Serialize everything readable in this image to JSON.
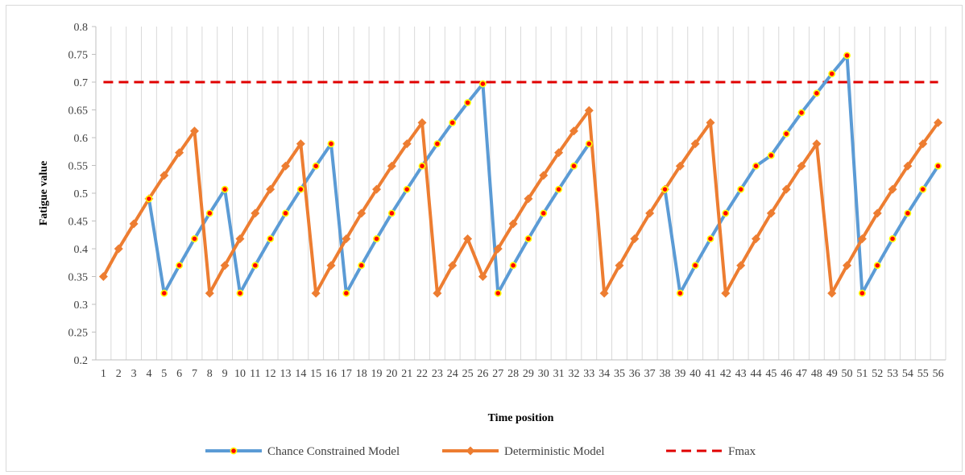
{
  "chart_data": {
    "type": "line",
    "title": "",
    "xlabel": "Time position",
    "ylabel": "Fatigue value",
    "ylim": [
      0.2,
      0.8
    ],
    "yticks": [
      "0.2",
      "0.25",
      "0.3",
      "0.35",
      "0.4",
      "0.45",
      "0.5",
      "0.55",
      "0.6",
      "0.65",
      "0.7",
      "0.75",
      "0.8"
    ],
    "x": [
      1,
      2,
      3,
      4,
      5,
      6,
      7,
      8,
      9,
      10,
      11,
      12,
      13,
      14,
      15,
      16,
      17,
      18,
      19,
      20,
      21,
      22,
      23,
      24,
      25,
      26,
      27,
      28,
      29,
      30,
      31,
      32,
      33,
      34,
      35,
      36,
      37,
      38,
      39,
      40,
      41,
      42,
      43,
      44,
      45,
      46,
      47,
      48,
      49,
      50,
      51,
      52,
      53,
      54,
      55,
      56
    ],
    "grid": "vertical",
    "legend_position": "bottom",
    "series": [
      {
        "name": "Chance Constrained Model",
        "color": "#5b9bd5",
        "marker": "red-dot-yellow-ring",
        "values": [
          null,
          null,
          null,
          0.49,
          0.32,
          0.37,
          0.418,
          0.464,
          0.507,
          0.32,
          0.37,
          0.418,
          0.464,
          0.507,
          0.549,
          0.589,
          0.32,
          0.37,
          0.418,
          0.464,
          0.507,
          0.549,
          0.589,
          0.627,
          0.663,
          0.697,
          0.32,
          0.37,
          0.418,
          0.464,
          0.507,
          0.549,
          0.589,
          null,
          null,
          null,
          null,
          0.507,
          0.32,
          0.37,
          0.418,
          0.464,
          0.507,
          0.549,
          0.568,
          0.607,
          0.645,
          0.68,
          0.715,
          0.748,
          0.32,
          0.37,
          0.418,
          0.464,
          0.507,
          0.549
        ]
      },
      {
        "name": "Deterministic Model",
        "color": "#ed7d31",
        "marker": "diamond",
        "values": [
          0.35,
          0.4,
          0.445,
          0.49,
          0.532,
          0.573,
          0.612,
          0.32,
          0.37,
          0.418,
          0.464,
          0.507,
          0.549,
          0.589,
          0.32,
          0.37,
          0.418,
          0.464,
          0.507,
          0.549,
          0.589,
          0.627,
          0.32,
          0.37,
          0.418,
          0.35,
          0.4,
          0.445,
          0.49,
          0.532,
          0.573,
          0.612,
          0.649,
          0.32,
          0.37,
          0.418,
          0.464,
          0.507,
          0.549,
          0.589,
          0.627,
          0.32,
          0.37,
          0.418,
          0.464,
          0.507,
          0.549,
          0.589,
          0.32,
          0.37,
          0.418,
          0.464,
          0.507,
          0.549,
          0.589,
          0.627
        ]
      },
      {
        "name": "Fmax",
        "color": "#e00000",
        "style": "dashed",
        "values": [
          0.7,
          0.7,
          0.7,
          0.7,
          0.7,
          0.7,
          0.7,
          0.7,
          0.7,
          0.7,
          0.7,
          0.7,
          0.7,
          0.7,
          0.7,
          0.7,
          0.7,
          0.7,
          0.7,
          0.7,
          0.7,
          0.7,
          0.7,
          0.7,
          0.7,
          0.7,
          0.7,
          0.7,
          0.7,
          0.7,
          0.7,
          0.7,
          0.7,
          0.7,
          0.7,
          0.7,
          0.7,
          0.7,
          0.7,
          0.7,
          0.7,
          0.7,
          0.7,
          0.7,
          0.7,
          0.7,
          0.7,
          0.7,
          0.7,
          0.7,
          0.7,
          0.7,
          0.7,
          0.7,
          0.7,
          0.7
        ]
      }
    ]
  }
}
